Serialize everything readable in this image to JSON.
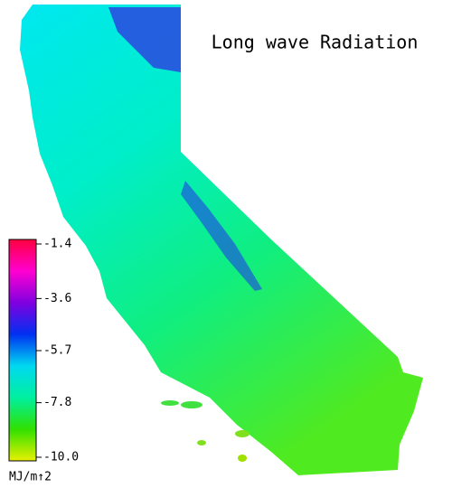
{
  "title": "Long wave Radiation",
  "colorbar": {
    "label": "MJ/m↑2",
    "range": [
      -10,
      -1.4
    ],
    "ticks": [
      -1.4,
      -3.6,
      -5.7,
      -7.8,
      {
        "value": -10,
        "label": "-10.0"
      }
    ],
    "colors": [
      "#e8f000",
      "#30e000",
      "#00f0a0",
      "#00d8f0",
      "#0030f0",
      "#8000e0",
      "#ff00d0",
      "#ff0040"
    ]
  }
}
